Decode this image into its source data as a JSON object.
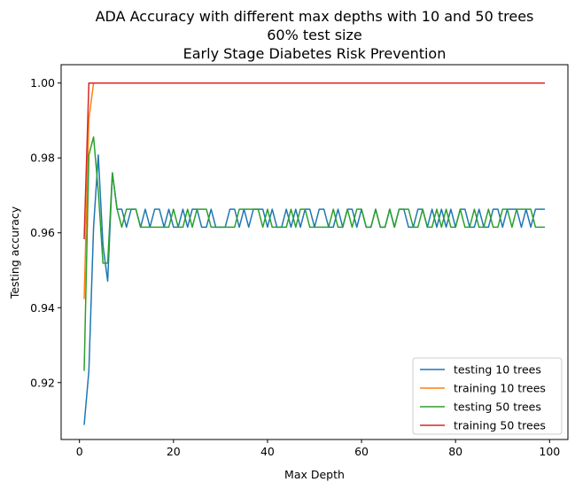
{
  "chart_data": {
    "type": "line",
    "title_lines": [
      "ADA Accuracy with different max depths with 10 and 50 trees",
      "60% test size",
      "Early Stage Diabetes Risk Prevention"
    ],
    "xlabel": "Max Depth",
    "ylabel": "Testing accuracy",
    "xlim": [
      -3.9,
      103.9
    ],
    "ylim": [
      0.9048,
      1.0049
    ],
    "xticks": [
      0,
      20,
      40,
      60,
      80,
      100
    ],
    "xtick_labels": [
      "0",
      "20",
      "40",
      "60",
      "80",
      "100"
    ],
    "yticks": [
      0.92,
      0.94,
      0.96,
      0.98,
      1.0
    ],
    "ytick_labels": [
      "0.92",
      "0.94",
      "0.96",
      "0.98",
      "1.00"
    ],
    "grid": false,
    "legend_position": "lower-right",
    "x_start": 1,
    "x_end": 99,
    "series": [
      {
        "name": "testing 10 trees",
        "color": "#1f77b4",
        "values": [
          0.9087,
          0.9231,
          0.9615,
          0.9808,
          0.9567,
          0.9471,
          0.976,
          0.9663,
          0.9663,
          0.9615,
          0.9663,
          0.9663,
          0.9615,
          0.9663,
          0.9615,
          0.9663,
          0.9663,
          0.9615,
          0.9663,
          0.9615,
          0.9615,
          0.9663,
          0.9615,
          0.9663,
          0.9663,
          0.9615,
          0.9615,
          0.9663,
          0.9615,
          0.9615,
          0.9615,
          0.9663,
          0.9663,
          0.9615,
          0.9663,
          0.9615,
          0.9663,
          0.9663,
          0.9663,
          0.9615,
          0.9663,
          0.9615,
          0.9615,
          0.9663,
          0.9615,
          0.9663,
          0.9615,
          0.9663,
          0.9663,
          0.9615,
          0.9663,
          0.9663,
          0.9615,
          0.9615,
          0.9663,
          0.9615,
          0.9663,
          0.9663,
          0.9615,
          0.9663,
          0.9615,
          0.9615,
          0.9663,
          0.9615,
          0.9615,
          0.9663,
          0.9615,
          0.9663,
          0.9663,
          0.9615,
          0.9615,
          0.9663,
          0.9663,
          0.9615,
          0.9663,
          0.9615,
          0.9663,
          0.9615,
          0.9663,
          0.9615,
          0.9663,
          0.9663,
          0.9615,
          0.9615,
          0.9663,
          0.9615,
          0.9615,
          0.9663,
          0.9663,
          0.9615,
          0.9663,
          0.9663,
          0.9663,
          0.9615,
          0.9663,
          0.9615,
          0.9663,
          0.9663,
          0.9663
        ]
      },
      {
        "name": "training 10 trees",
        "color": "#ff7f0e",
        "values": [
          0.9423,
          0.9904,
          1.0,
          1.0,
          1.0,
          1.0,
          1.0,
          1.0,
          1.0,
          1.0,
          1.0,
          1.0,
          1.0,
          1.0,
          1.0,
          1.0,
          1.0,
          1.0,
          1.0,
          1.0,
          1.0,
          1.0,
          1.0,
          1.0,
          1.0,
          1.0,
          1.0,
          1.0,
          1.0,
          1.0,
          1.0,
          1.0,
          1.0,
          1.0,
          1.0,
          1.0,
          1.0,
          1.0,
          1.0,
          1.0,
          1.0,
          1.0,
          1.0,
          1.0,
          1.0,
          1.0,
          1.0,
          1.0,
          1.0,
          1.0,
          1.0,
          1.0,
          1.0,
          1.0,
          1.0,
          1.0,
          1.0,
          1.0,
          1.0,
          1.0,
          1.0,
          1.0,
          1.0,
          1.0,
          1.0,
          1.0,
          1.0,
          1.0,
          1.0,
          1.0,
          1.0,
          1.0,
          1.0,
          1.0,
          1.0,
          1.0,
          1.0,
          1.0,
          1.0,
          1.0,
          1.0,
          1.0,
          1.0,
          1.0,
          1.0,
          1.0,
          1.0,
          1.0,
          1.0,
          1.0,
          1.0,
          1.0,
          1.0,
          1.0,
          1.0,
          1.0,
          1.0,
          1.0,
          1.0
        ]
      },
      {
        "name": "testing 50 trees",
        "color": "#2ca02c",
        "values": [
          0.9231,
          0.9808,
          0.9856,
          0.9712,
          0.9519,
          0.9519,
          0.976,
          0.9663,
          0.9615,
          0.9663,
          0.9663,
          0.9663,
          0.9615,
          0.9615,
          0.9615,
          0.9615,
          0.9615,
          0.9615,
          0.9615,
          0.9663,
          0.9615,
          0.9615,
          0.9663,
          0.9615,
          0.9663,
          0.9663,
          0.9663,
          0.9615,
          0.9615,
          0.9615,
          0.9615,
          0.9615,
          0.9615,
          0.9663,
          0.9663,
          0.9663,
          0.9663,
          0.9663,
          0.9615,
          0.9663,
          0.9615,
          0.9615,
          0.9615,
          0.9615,
          0.9663,
          0.9615,
          0.9663,
          0.9663,
          0.9615,
          0.9615,
          0.9615,
          0.9615,
          0.9615,
          0.9663,
          0.9615,
          0.9615,
          0.9663,
          0.9615,
          0.9663,
          0.9663,
          0.9615,
          0.9615,
          0.9663,
          0.9615,
          0.9615,
          0.9663,
          0.9615,
          0.9663,
          0.9663,
          0.9663,
          0.9615,
          0.9615,
          0.9663,
          0.9615,
          0.9615,
          0.9663,
          0.9615,
          0.9663,
          0.9615,
          0.9615,
          0.9663,
          0.9615,
          0.9615,
          0.9663,
          0.9615,
          0.9615,
          0.9663,
          0.9615,
          0.9615,
          0.9663,
          0.9663,
          0.9615,
          0.9663,
          0.9663,
          0.9663,
          0.9663,
          0.9615,
          0.9615,
          0.9615
        ]
      },
      {
        "name": "training 50 trees",
        "color": "#d62728",
        "values": [
          0.9583,
          1.0,
          1.0,
          1.0,
          1.0,
          1.0,
          1.0,
          1.0,
          1.0,
          1.0,
          1.0,
          1.0,
          1.0,
          1.0,
          1.0,
          1.0,
          1.0,
          1.0,
          1.0,
          1.0,
          1.0,
          1.0,
          1.0,
          1.0,
          1.0,
          1.0,
          1.0,
          1.0,
          1.0,
          1.0,
          1.0,
          1.0,
          1.0,
          1.0,
          1.0,
          1.0,
          1.0,
          1.0,
          1.0,
          1.0,
          1.0,
          1.0,
          1.0,
          1.0,
          1.0,
          1.0,
          1.0,
          1.0,
          1.0,
          1.0,
          1.0,
          1.0,
          1.0,
          1.0,
          1.0,
          1.0,
          1.0,
          1.0,
          1.0,
          1.0,
          1.0,
          1.0,
          1.0,
          1.0,
          1.0,
          1.0,
          1.0,
          1.0,
          1.0,
          1.0,
          1.0,
          1.0,
          1.0,
          1.0,
          1.0,
          1.0,
          1.0,
          1.0,
          1.0,
          1.0,
          1.0,
          1.0,
          1.0,
          1.0,
          1.0,
          1.0,
          1.0,
          1.0,
          1.0,
          1.0,
          1.0,
          1.0,
          1.0,
          1.0,
          1.0,
          1.0,
          1.0,
          1.0,
          1.0
        ]
      }
    ]
  }
}
